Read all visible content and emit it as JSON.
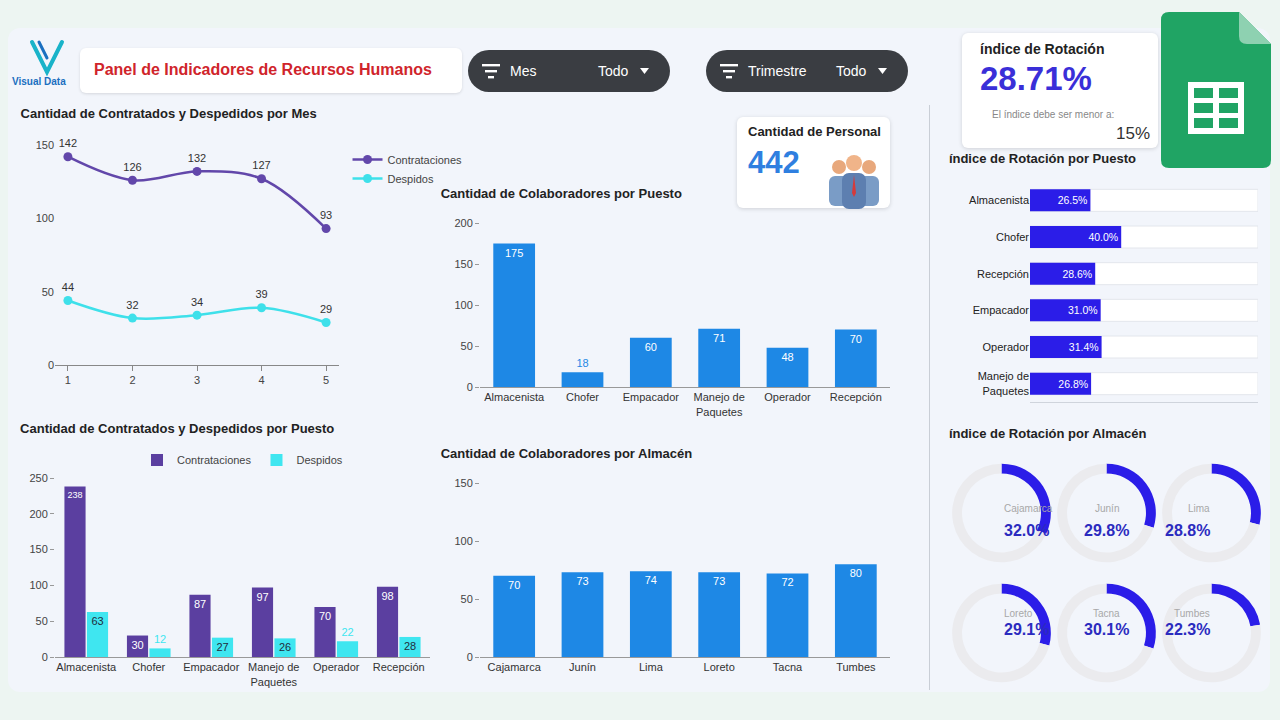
{
  "header": {
    "logo": "Visual Data",
    "title": "Panel de Indicadores de Recursos Humanos"
  },
  "filters": [
    {
      "label": "Mes",
      "value": "Todo"
    },
    {
      "label": "Trimestre",
      "value": "Todo"
    }
  ],
  "kpis": {
    "personal": {
      "title": "Cantidad de Personal",
      "value": 442
    },
    "rotation": {
      "title": "índice de Rotación",
      "value": "28.71%",
      "note": "El índice debe ser menor a:",
      "target": "15%"
    }
  },
  "chart_data": [
    {
      "type": "line",
      "title": "Cantidad de Contratados y Despedidos por Mes",
      "x": [
        1,
        2,
        3,
        4,
        5
      ],
      "series": [
        {
          "name": "Contrataciones",
          "color": "#6247aa",
          "values": [
            142,
            126,
            132,
            127,
            93
          ]
        },
        {
          "name": "Despidos",
          "color": "#3ee0ea",
          "values": [
            44,
            32,
            34,
            39,
            29
          ]
        }
      ],
      "xlim": [
        0.8,
        5.2
      ],
      "xticks": [
        1,
        2,
        3,
        4,
        5
      ],
      "ylim": [
        0,
        150
      ],
      "yticks": [
        0,
        50,
        100,
        150
      ],
      "grid": false,
      "legend": "right",
      "data_labels": true,
      "marker": "circle",
      "line_style": "solid"
    },
    {
      "type": "bar",
      "title": "Cantidad de Colaboradores por Puesto",
      "categories": [
        "Almacenista",
        "Chofer",
        "Empacador",
        "Manejo de Paquetes",
        "Operador",
        "Recepción"
      ],
      "values": [
        175,
        18,
        60,
        71,
        48,
        70
      ],
      "color": "#1e88e5",
      "ylim": [
        0,
        200
      ],
      "yticks": [
        0,
        50,
        100,
        150,
        200
      ],
      "grid": false,
      "data_labels": true
    },
    {
      "type": "bar",
      "title": "Cantidad de Contratados y Despedidos por Puesto",
      "categories": [
        "Almacenista",
        "Chofer",
        "Empacador",
        "Manejo de Paquetes",
        "Operador",
        "Recepción"
      ],
      "series": [
        {
          "name": "Contrataciones",
          "color": "#5b3fa0",
          "values": [
            238,
            30,
            87,
            97,
            70,
            98
          ]
        },
        {
          "name": "Despidos",
          "color": "#3fe6f0",
          "values": [
            63,
            12,
            27,
            26,
            22,
            28
          ]
        }
      ],
      "ylim": [
        0,
        250
      ],
      "yticks": [
        0,
        50,
        100,
        150,
        200,
        250
      ],
      "grid": false,
      "legend": "top",
      "data_labels": true
    },
    {
      "type": "bar",
      "title": "Cantidad de Colaboradores por Almacén",
      "categories": [
        "Cajamarca",
        "Junín",
        "Lima",
        "Loreto",
        "Tacna",
        "Tumbes"
      ],
      "values": [
        70,
        73,
        74,
        73,
        72,
        80
      ],
      "color": "#1e88e5",
      "ylim": [
        0,
        150
      ],
      "yticks": [
        0,
        50,
        100,
        150
      ],
      "grid": false,
      "data_labels": true
    },
    {
      "type": "bar",
      "orientation": "horizontal",
      "title": "índice de Rotación por Puesto",
      "categories": [
        "Almacenista",
        "Chofer",
        "Recepción",
        "Empacador",
        "Operador",
        "Manejo de Paquetes"
      ],
      "values": [
        26.5,
        40.0,
        28.6,
        31.0,
        31.4,
        26.8
      ],
      "value_labels": [
        "26.5%",
        "40.0%",
        "28.6%",
        "31.0%",
        "31.4%",
        "26.8%"
      ],
      "color": "#2b1de8",
      "xlim": [
        0,
        100
      ],
      "xticks": [],
      "tick_labels": "y",
      "data_labels": true
    },
    {
      "type": "donut",
      "title": "índice de Rotación por Almacén",
      "categories": [
        "Cajamarca",
        "Junín",
        "Lima",
        "Loreto",
        "Tacna",
        "Tumbes"
      ],
      "values": [
        32.0,
        29.8,
        28.8,
        29.1,
        30.1,
        22.3
      ],
      "value_labels": [
        "32.0%",
        "29.8%",
        "28.8%",
        "29.1%",
        "30.1%",
        "22.3%"
      ],
      "total": 100,
      "color": "#2b1de8",
      "data_labels": true
    }
  ]
}
